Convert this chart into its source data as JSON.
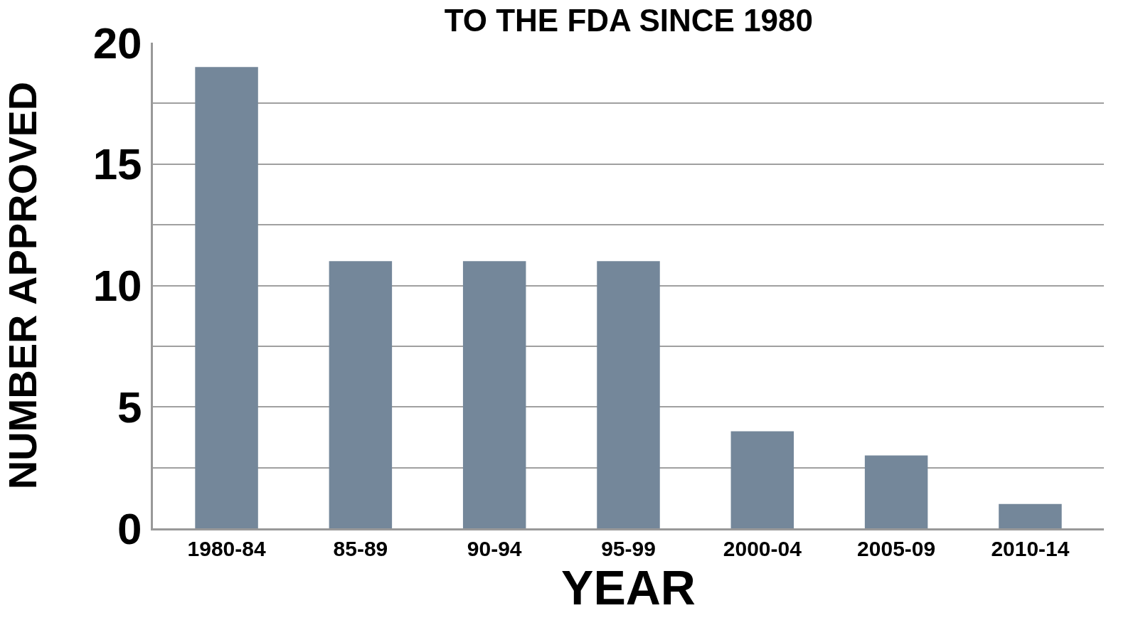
{
  "chart_data": {
    "type": "bar",
    "title": "TO THE FDA SINCE 1980",
    "xlabel": "YEAR",
    "ylabel": "NUMBER APPROVED",
    "categories": [
      "1980-84",
      "85-89",
      "90-94",
      "95-99",
      "2000-04",
      "2005-09",
      "2010-14"
    ],
    "values": [
      19,
      11,
      11,
      11,
      4,
      3,
      1
    ],
    "color": "#74879a",
    "ylim": [
      0,
      20
    ],
    "yticks": [
      0,
      {
        "value": 2.5,
        "label": null
      },
      5,
      {
        "value": 7.5,
        "label": null
      },
      10,
      {
        "value": 12.5,
        "label": null
      },
      15,
      {
        "value": 17.5,
        "label": null
      },
      20
    ],
    "grid": "y"
  }
}
